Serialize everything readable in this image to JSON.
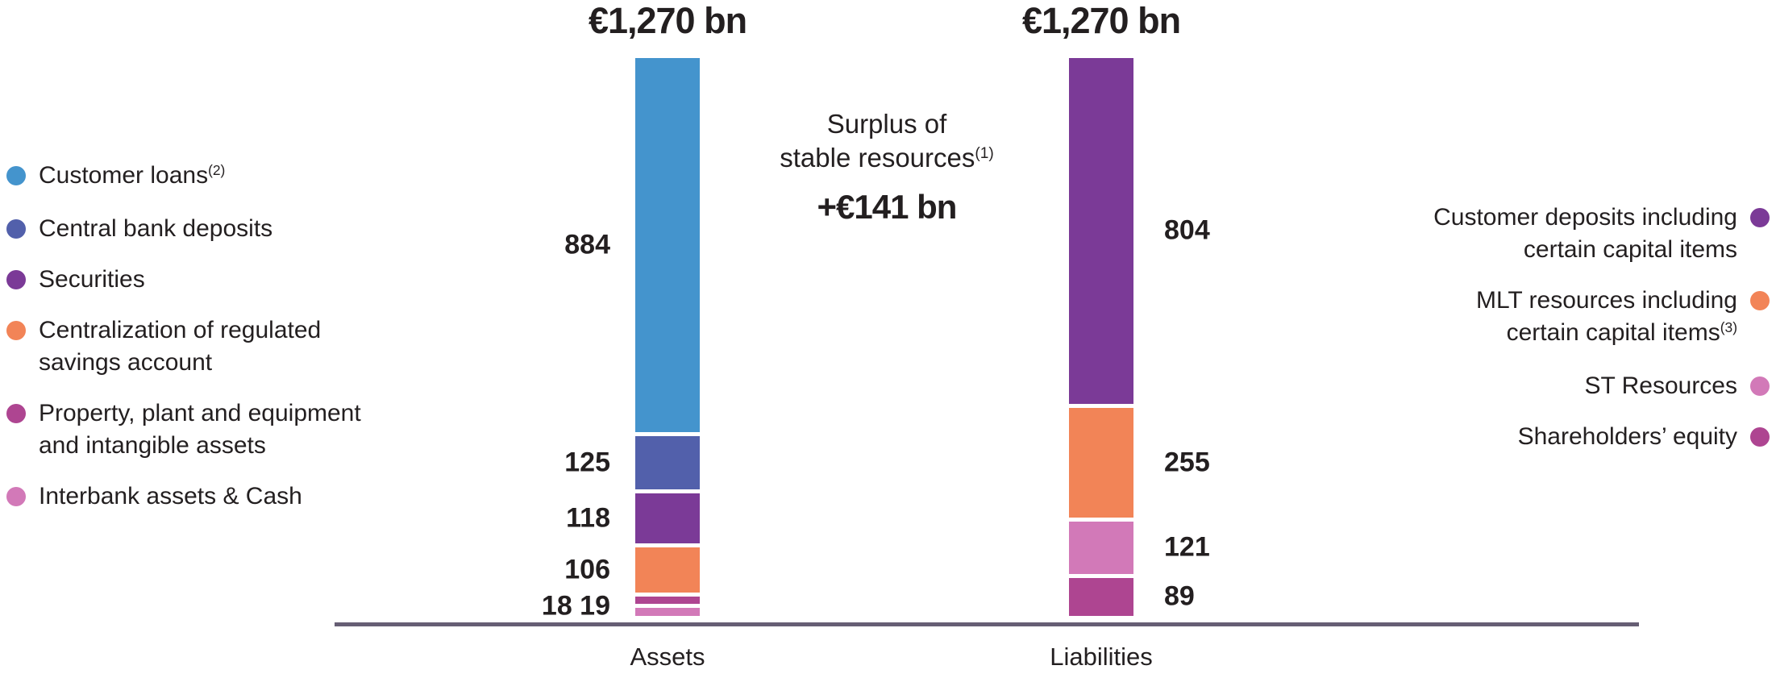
{
  "chart_data": {
    "type": "bar",
    "subtype": "stacked-balance-sheet",
    "unit": "EUR bn",
    "categories": [
      "Assets",
      "Liabilities"
    ],
    "totals": {
      "assets": "€1,270 bn",
      "liabilities": "€1,270 bn"
    },
    "annotation": {
      "line1": "Surplus of",
      "line2": "stable resources",
      "sup": "(1)",
      "value": "+€141 bn"
    },
    "assets_segments": [
      {
        "name": "Customer loans",
        "sup": "(2)",
        "value": 884,
        "color": "#4494cd"
      },
      {
        "name": "Central bank deposits",
        "value": 125,
        "color": "#5260ab"
      },
      {
        "name": "Securities",
        "value": 118,
        "color": "#7b3a97"
      },
      {
        "name": "Centralization of regulated savings account",
        "value": 106,
        "color": "#f28457"
      },
      {
        "name": "Property, plant and equipment and intangible assets",
        "value": 18,
        "color": "#ae4591"
      },
      {
        "name": "Interbank assets & Cash",
        "value": 19,
        "color": "#d279b8"
      }
    ],
    "liabilities_segments": [
      {
        "name": "Customer deposits including certain capital items",
        "value": 804,
        "color": "#7b3a97"
      },
      {
        "name": "MLT resources including certain capital items",
        "sup": "(3)",
        "value": 255,
        "color": "#f28457"
      },
      {
        "name": "ST Resources",
        "value": 121,
        "color": "#d279b8"
      },
      {
        "name": "Shareholders' equity",
        "value": 89,
        "color": "#ae4591"
      }
    ],
    "assets_label_groups": [
      [
        0
      ],
      [
        1
      ],
      [
        2
      ],
      [
        3
      ],
      [
        4,
        5
      ]
    ],
    "liabilities_label_groups": [
      [
        0
      ],
      [
        1
      ],
      [
        2
      ],
      [
        3
      ]
    ],
    "legend_position": "both-sides",
    "axis_line_color": "#665e74"
  },
  "legend_left": {
    "items": [
      {
        "lines": [
          "Customer loans"
        ],
        "sup": "(2)",
        "color": "#4494cd"
      },
      {
        "lines": [
          "Central bank deposits"
        ],
        "color": "#5260ab"
      },
      {
        "lines": [
          "Securities"
        ],
        "color": "#7b3a97"
      },
      {
        "lines": [
          "Centralization of regulated",
          "savings account"
        ],
        "color": "#f28457"
      },
      {
        "lines": [
          "Property, plant and equipment",
          "and intangible assets"
        ],
        "color": "#ae4591"
      },
      {
        "lines": [
          "Interbank assets & Cash"
        ],
        "color": "#d279b8"
      }
    ]
  },
  "legend_right": {
    "items": [
      {
        "lines": [
          "Customer deposits including",
          "certain capital items"
        ],
        "color": "#7b3a97"
      },
      {
        "lines": [
          "MLT resources including",
          "certain capital items"
        ],
        "sup": "(3)",
        "color": "#f28457"
      },
      {
        "lines": [
          "ST Resources"
        ],
        "color": "#d279b8"
      },
      {
        "lines": [
          "Shareholders’ equity"
        ],
        "color": "#ae4591"
      }
    ]
  }
}
